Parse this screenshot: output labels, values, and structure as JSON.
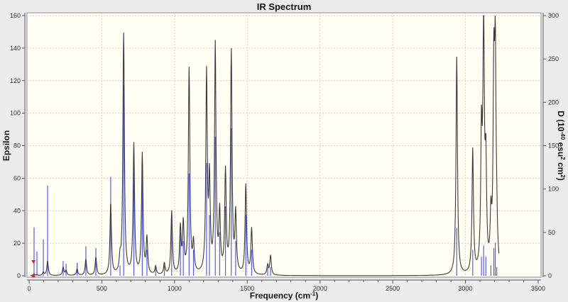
{
  "chart_data": {
    "type": "line",
    "title": "IR Spectrum",
    "xlabel": "Frequency (cm",
    "xlabel_sup": "-1",
    "xlabel_end": ")",
    "ylabel": "Epsilon",
    "y2label": {
      "pre": "D (10",
      "sup1": "-40",
      "mid": " esu",
      "sup2": "2",
      "mid2": " cm",
      "sup3": "2",
      "end": ")"
    },
    "xlim": [
      0,
      3500
    ],
    "ylim": [
      0,
      160
    ],
    "y2lim": [
      0,
      300
    ],
    "xticks": [
      0,
      500,
      1000,
      1500,
      2000,
      2500,
      3000,
      3500
    ],
    "yticks": [
      0,
      20,
      40,
      60,
      80,
      100,
      120,
      140,
      160
    ],
    "y2ticks": [
      0,
      50,
      100,
      150,
      200,
      250,
      300
    ],
    "grid": true,
    "colors": {
      "curve": "#3a3a3a",
      "sticks": "#3c3cff",
      "marker": "#e02020",
      "plot_bg": "#fffff4"
    },
    "marker_frequency": 30,
    "series": [
      {
        "name": "Epsilon",
        "axis": "left",
        "style": "curve",
        "peaks_freq": [
          34,
          54,
          98,
          127,
          234,
          254,
          330,
          390,
          459,
          561,
          625,
          650,
          720,
          778,
          810,
          870,
          930,
          980,
          1040,
          1060,
          1100,
          1130,
          1220,
          1240,
          1280,
          1310,
          1350,
          1390,
          1420,
          1490,
          1530,
          1640,
          1660,
          2940,
          3050,
          3110,
          3125,
          3140,
          3175,
          3195,
          3205,
          3215
        ],
        "peaks_epsilon": [
          1,
          0.5,
          2,
          9,
          5,
          3,
          4,
          10,
          11,
          44,
          8,
          148,
          80,
          74,
          22,
          5,
          7,
          39,
          28,
          30,
          126,
          18,
          122,
          55,
          140,
          36,
          62,
          136,
          36,
          55,
          28,
          6,
          12,
          134,
          76,
          80,
          150,
          60,
          30,
          112,
          122,
          18
        ]
      },
      {
        "name": "D",
        "axis": "right",
        "style": "sticks",
        "freq": [
          34,
          54,
          98,
          127,
          234,
          254,
          330,
          390,
          459,
          561,
          625,
          650,
          720,
          778,
          810,
          870,
          930,
          980,
          1040,
          1060,
          1100,
          1130,
          1220,
          1240,
          1280,
          1310,
          1350,
          1390,
          1420,
          1490,
          1530,
          1640,
          1660,
          2940,
          3050,
          3110,
          3125,
          3140,
          3175,
          3195,
          3205,
          3215
        ],
        "D": [
          56,
          28,
          42,
          104,
          17,
          14,
          15,
          34,
          32,
          114,
          12,
          220,
          130,
          120,
          30,
          10,
          12,
          60,
          50,
          40,
          118,
          30,
          130,
          70,
          160,
          50,
          80,
          170,
          40,
          70,
          30,
          10,
          10,
          55,
          30,
          22,
          35,
          22,
          12,
          32,
          38,
          10
        ]
      }
    ]
  }
}
